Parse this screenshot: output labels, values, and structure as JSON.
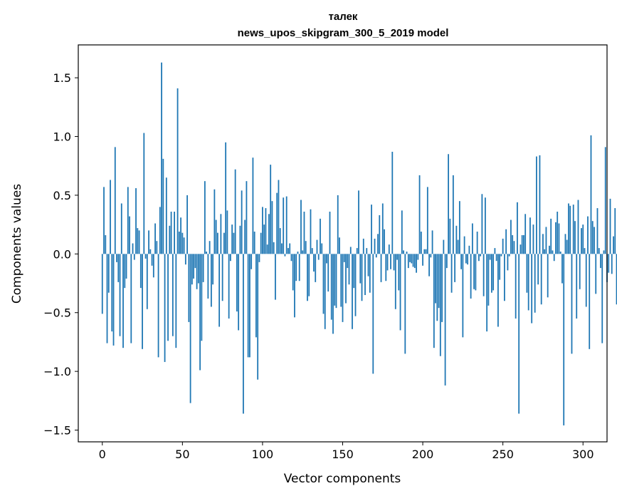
{
  "chart_data": {
    "type": "bar",
    "title": "талек",
    "subtitle": "news_upos_skipgram_300_5_2019 model",
    "xlabel": "Vector components",
    "ylabel": "Components values",
    "xlim": [
      -15,
      315
    ],
    "ylim": [
      -1.6,
      1.78
    ],
    "xticks": [
      0,
      50,
      100,
      150,
      200,
      250,
      300
    ],
    "yticks": [
      -1.5,
      -1.0,
      -0.5,
      0.0,
      0.5,
      1.0,
      1.5
    ],
    "xtick_labels": [
      "0",
      "50",
      "100",
      "150",
      "200",
      "250",
      "300"
    ],
    "ytick_labels": [
      "−1.5",
      "−1.0",
      "−0.5",
      "0.0",
      "0.5",
      "1.0",
      "1.5"
    ],
    "grid": false,
    "bar_color": "#1f77b4",
    "values": [
      -0.51,
      0.57,
      0.16,
      -0.76,
      -0.33,
      0.63,
      -0.66,
      -0.78,
      0.91,
      -0.07,
      -0.24,
      -0.7,
      0.43,
      -0.8,
      -0.29,
      -0.21,
      0.57,
      0.32,
      -0.76,
      0.09,
      -0.05,
      0.56,
      0.22,
      0.2,
      -0.29,
      -0.81,
      1.03,
      -0.04,
      -0.47,
      0.2,
      0.04,
      -0.1,
      -0.2,
      0.26,
      0.11,
      -0.88,
      0.4,
      1.63,
      0.81,
      -0.92,
      0.65,
      -0.74,
      0.24,
      0.36,
      -0.7,
      0.36,
      -0.8,
      1.41,
      0.19,
      0.31,
      0.18,
      0.14,
      -0.09,
      0.5,
      -0.58,
      -1.27,
      -0.26,
      -0.21,
      -0.12,
      -0.3,
      -0.25,
      -0.99,
      -0.74,
      -0.24,
      0.62,
      0.02,
      -0.38,
      0.11,
      -0.45,
      -0.26,
      0.55,
      0.29,
      0.18,
      -0.62,
      0.34,
      -0.4,
      0.18,
      0.95,
      0.37,
      -0.55,
      -0.06,
      0.25,
      0.18,
      0.72,
      -0.49,
      -0.65,
      0.24,
      0.54,
      -1.36,
      0.29,
      0.62,
      -0.88,
      -0.88,
      -0.13,
      0.82,
      0.19,
      -0.71,
      -1.07,
      -0.07,
      0.18,
      0.4,
      0.25,
      0.39,
      0.08,
      0.34,
      0.76,
      0.45,
      0.1,
      -0.39,
      0.52,
      0.63,
      0.22,
      0.09,
      0.48,
      -0.02,
      0.49,
      0.05,
      0.09,
      -0.06,
      -0.31,
      -0.54,
      -0.23,
      0.02,
      -0.23,
      0.46,
      0.03,
      0.36,
      0.11,
      -0.4,
      -0.36,
      0.38,
      0.05,
      -0.15,
      -0.24,
      0.12,
      -0.05,
      0.3,
      0.09,
      -0.51,
      -0.64,
      -0.08,
      -0.32,
      0.36,
      -0.56,
      -0.68,
      -0.44,
      -0.46,
      0.5,
      0.14,
      -0.45,
      -0.58,
      -0.07,
      -0.42,
      -0.12,
      -0.26,
      0.06,
      -0.64,
      -0.29,
      -0.53,
      0.05,
      0.54,
      -0.25,
      -0.4,
      0.13,
      -0.35,
      0.05,
      -0.19,
      -0.33,
      0.42,
      -1.02,
      0.13,
      -0.03,
      0.17,
      0.33,
      -0.24,
      0.43,
      0.21,
      -0.23,
      -0.14,
      0.08,
      -0.13,
      0.87,
      -0.14,
      -0.47,
      -0.05,
      -0.31,
      -0.65,
      0.37,
      0.03,
      -0.85,
      0.02,
      -0.12,
      -0.07,
      -0.08,
      -0.11,
      -0.12,
      -0.16,
      -0.05,
      0.67,
      0.19,
      -0.1,
      0.04,
      0.04,
      0.57,
      -0.19,
      -0.03,
      0.2,
      -0.8,
      -0.42,
      -0.57,
      -0.46,
      -0.87,
      -0.58,
      0.12,
      -1.12,
      -0.12,
      0.85,
      0.3,
      -0.33,
      0.67,
      -0.24,
      0.24,
      0.12,
      0.45,
      -0.13,
      -0.71,
      0.15,
      -0.08,
      -0.09,
      0.07,
      -0.38,
      0.26,
      -0.3,
      -0.31,
      0.19,
      -0.06,
      -0.02,
      0.51,
      -0.36,
      0.48,
      -0.66,
      -0.44,
      -0.05,
      -0.33,
      -0.31,
      0.05,
      -0.06,
      -0.62,
      -0.22,
      -0.02,
      0.13,
      -0.4,
      0.21,
      -0.14,
      -0.02,
      0.29,
      0.16,
      0.11,
      -0.55,
      0.44,
      -1.36,
      0.08,
      0.16,
      0.16,
      0.34,
      -0.33,
      -0.48,
      0.31,
      -0.59,
      0.25,
      -0.5,
      0.83,
      -0.26,
      0.84,
      -0.43,
      0.17,
      0.04,
      0.23,
      -0.37,
      0.07,
      0.3,
      0.03,
      -0.06,
      0.27,
      0.36,
      0.26,
      0.02,
      -0.25,
      -1.46,
      0.17,
      0.12,
      0.43,
      0.41,
      -0.85,
      0.42,
      0.28,
      -0.55,
      0.46,
      -0.3,
      0.22,
      0.25,
      0.05,
      -0.45,
      0.32,
      -0.81,
      1.01,
      0.28,
      0.23,
      -0.34,
      0.39,
      0.05,
      -0.12,
      -0.76,
      0.03,
      0.91,
      -0.24,
      -0.16,
      0.47,
      -0.17,
      0.15,
      0.39,
      -0.43,
      0.47,
      -0.44,
      0.32,
      -0.58,
      0.84,
      -0.53,
      0.34,
      -0.25,
      0.49,
      -0.17,
      0.1,
      -0.36,
      0.68,
      -0.81,
      0.39,
      0.29,
      0.23,
      -0.34,
      0.13,
      0.56,
      0.43,
      0.06,
      0.83,
      -0.06,
      0.35,
      0.47,
      -0.17,
      1.22,
      0.03,
      0.14,
      0.43,
      0.4,
      0.19,
      0.06,
      0.05,
      1.32,
      0.27,
      0.17,
      0.19,
      -0.18,
      0.65,
      0.58,
      0.11,
      0.58,
      0.49,
      -0.42,
      -0.34,
      0.06,
      0.09,
      0.22,
      -0.11,
      0.66,
      0.77,
      0.12,
      -0.1,
      -0.06,
      0.21,
      0.23,
      -0.13,
      -0.43,
      0.27,
      -1.36,
      0.13,
      0.47,
      0.25,
      0.2,
      0.34,
      0.49,
      0.5,
      0.63,
      0.93,
      0.65,
      0.18,
      0.03,
      0.14,
      -0.04,
      0.02,
      0.47,
      -0.16,
      -0.22,
      -0.27
    ]
  }
}
